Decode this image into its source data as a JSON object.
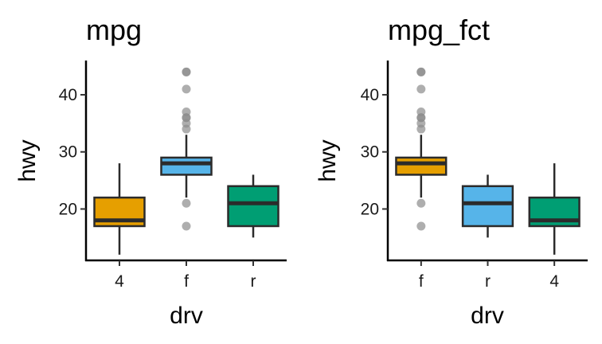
{
  "chart_data": [
    {
      "type": "boxplot",
      "title": "mpg",
      "xlabel": "drv",
      "ylabel": "hwy",
      "ylim": [
        11,
        46
      ],
      "yticks": [
        20,
        30,
        40
      ],
      "grid": false,
      "legend": "none",
      "categories": [
        "4",
        "f",
        "r"
      ],
      "boxes": [
        {
          "category": "4",
          "lower_whisker": 12,
          "q1": 17,
          "median": 18,
          "q3": 22,
          "upper_whisker": 28,
          "outliers": [],
          "color": "#E69F00"
        },
        {
          "category": "f",
          "lower_whisker": 22,
          "q1": 26,
          "median": 28,
          "q3": 29,
          "upper_whisker": 33,
          "outliers": [
            17,
            21,
            34,
            35,
            36,
            36,
            37,
            41,
            44,
            44
          ],
          "color": "#56B4E9"
        },
        {
          "category": "r",
          "lower_whisker": 15,
          "q1": 17,
          "median": 21,
          "q3": 24,
          "upper_whisker": 26,
          "outliers": [],
          "color": "#009E73"
        }
      ]
    },
    {
      "type": "boxplot",
      "title": "mpg_fct",
      "xlabel": "drv",
      "ylabel": "hwy",
      "ylim": [
        11,
        46
      ],
      "yticks": [
        20,
        30,
        40
      ],
      "grid": false,
      "legend": "none",
      "categories": [
        "f",
        "r",
        "4"
      ],
      "boxes": [
        {
          "category": "f",
          "lower_whisker": 22,
          "q1": 26,
          "median": 28,
          "q3": 29,
          "upper_whisker": 33,
          "outliers": [
            17,
            21,
            34,
            35,
            36,
            36,
            37,
            41,
            44,
            44
          ],
          "color": "#E69F00"
        },
        {
          "category": "r",
          "lower_whisker": 15,
          "q1": 17,
          "median": 21,
          "q3": 24,
          "upper_whisker": 26,
          "outliers": [],
          "color": "#56B4E9"
        },
        {
          "category": "4",
          "lower_whisker": 12,
          "q1": 17,
          "median": 18,
          "q3": 22,
          "upper_whisker": 28,
          "outliers": [],
          "color": "#009E73"
        }
      ]
    }
  ]
}
